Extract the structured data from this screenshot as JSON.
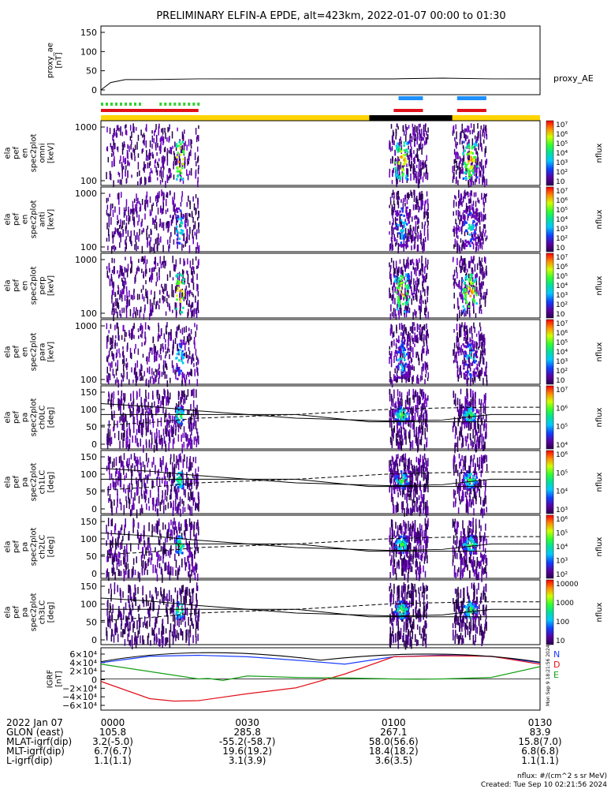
{
  "title": "PRELIMINARY ELFIN-A EPDE, alt=423km, 2022-01-07 00:00 to 01:30",
  "panels": [
    {
      "id": "proxy_ae",
      "ylabel": [
        "proxy_ae",
        "[nT]"
      ],
      "yticks": [
        "150",
        "100",
        "50",
        "0"
      ],
      "right_label": "proxy_AE"
    },
    {
      "id": "p_omni",
      "ylabel": [
        "ela",
        "pef",
        "en",
        "spec2plot",
        "omni",
        "[keV]"
      ],
      "yticks": [
        "1000",
        "100"
      ],
      "zlabel": "nflux",
      "zticks": [
        "10⁷",
        "10⁶",
        "10⁵",
        "10⁴",
        "10³",
        "10²",
        "10"
      ]
    },
    {
      "id": "p_anti",
      "ylabel": [
        "ela",
        "pef",
        "en",
        "spec2plot",
        "anti",
        "[keV]"
      ],
      "yticks": [
        "1000",
        "100"
      ],
      "zlabel": "nflux",
      "zticks": [
        "10⁷",
        "10⁶",
        "10⁵",
        "10⁴",
        "10³",
        "10²",
        "10"
      ]
    },
    {
      "id": "p_perp",
      "ylabel": [
        "ela",
        "pef",
        "en",
        "spec2plot",
        "perp",
        "[keV]"
      ],
      "yticks": [
        "1000",
        "100"
      ],
      "zlabel": "nflux",
      "zticks": [
        "10⁷",
        "10⁶",
        "10⁵",
        "10⁴",
        "10³",
        "10²",
        "10"
      ]
    },
    {
      "id": "p_para",
      "ylabel": [
        "ela",
        "pef",
        "en",
        "spec2plot",
        "para",
        "[keV]"
      ],
      "yticks": [
        "1000",
        "100"
      ],
      "zlabel": "nflux",
      "zticks": [
        "10⁷",
        "10⁶",
        "10⁵",
        "10⁴",
        "10³",
        "10²",
        "10"
      ]
    },
    {
      "id": "p_ch0",
      "ylabel": [
        "ela",
        "pef",
        "pa",
        "spec2plot",
        "ch0LC",
        "[deg]"
      ],
      "yticks": [
        "150",
        "100",
        "50",
        "0"
      ],
      "zlabel": "nflux",
      "zticks": [
        "10⁷",
        "10⁶",
        "10⁵",
        "10⁴"
      ]
    },
    {
      "id": "p_ch1",
      "ylabel": [
        "ela",
        "pef",
        "pa",
        "spec2plot",
        "ch1LC",
        "[deg]"
      ],
      "yticks": [
        "150",
        "100",
        "50",
        "0"
      ],
      "zlabel": "nflux",
      "zticks": [
        "10⁶",
        "10⁵",
        "10⁴",
        "10³"
      ]
    },
    {
      "id": "p_ch2",
      "ylabel": [
        "ela",
        "pef",
        "pa",
        "spec2plot",
        "ch2LC",
        "[deg]"
      ],
      "yticks": [
        "150",
        "100",
        "50",
        "0"
      ],
      "zlabel": "nflux",
      "zticks": [
        "10⁶",
        "10⁵",
        "10⁴",
        "10³",
        "10²"
      ]
    },
    {
      "id": "p_ch3",
      "ylabel": [
        "ela",
        "pef",
        "pa",
        "spec2plot",
        "ch3LC",
        "[deg]"
      ],
      "yticks": [
        "150",
        "100",
        "50",
        "0"
      ],
      "zlabel": "nflux",
      "zticks": [
        "10000",
        "1000",
        "100",
        "10"
      ]
    },
    {
      "id": "igrf",
      "ylabel": [
        "IGRF",
        "[nT]"
      ],
      "yticks": [
        "6×10⁴",
        "4×10⁴",
        "2×10⁴",
        "0",
        "−2×10⁴",
        "−4×10⁴",
        "−6×10⁴"
      ],
      "legend": [
        "N",
        "D",
        "E"
      ]
    }
  ],
  "x_labels": {
    "rows": [
      "2022 Jan 07",
      "GLON (east)",
      "MLAT-igrf(dip)",
      "MLT-igrf(dip)",
      "L-igrf(dip)"
    ],
    "columns": [
      [
        "0000",
        "105.8",
        "3.2(-5.0)",
        "6.7(6.7)",
        "1.1(1.1)"
      ],
      [
        "0030",
        "285.8",
        "-55.2(-58.7)",
        "19.6(19.2)",
        "3.1(3.9)"
      ],
      [
        "0100",
        "267.1",
        "58.0(56.6)",
        "18.4(18.2)",
        "3.6(3.5)"
      ],
      [
        "0130",
        "83.9",
        "15.8(7.0)",
        "6.8(6.8)",
        "1.1(1.1)"
      ]
    ]
  },
  "footer": {
    "units": "nflux: #/(cm^2 s sr MeV)",
    "created": "Created: Tue Sep 10 02:21:56 2024",
    "side_stamp": "Mon Sep 9 18:21:56 2024"
  },
  "colors": {
    "ae_line": "#000",
    "igrf_N": "#1a3cff",
    "igrf_D": "#e0101a",
    "igrf_E": "#14a014",
    "bar_yellow": "#ffd400",
    "bar_black": "#000",
    "bar_red": "#e0101a",
    "bar_blue": "#1e90ff",
    "bar_green": "#32d232"
  },
  "chart_data": {
    "type": "heatmap",
    "x_range_minutes": [
      0,
      90
    ],
    "proxy_ae": {
      "ylim": [
        0,
        160
      ],
      "x": [
        0,
        2,
        5,
        10,
        20,
        30,
        45,
        60,
        70,
        80,
        90
      ],
      "y": [
        0,
        20,
        28,
        28,
        30,
        30,
        30,
        30,
        32,
        30,
        30
      ]
    },
    "pa_lines_deg": {
      "solid_upper": {
        "x": [
          0,
          10,
          20,
          40,
          60,
          70,
          80,
          90
        ],
        "y": [
          120,
          112,
          100,
          80,
          72,
          75,
          90,
          90
        ]
      },
      "dashed": {
        "x": [
          0,
          10,
          20,
          40,
          60,
          70,
          80,
          90
        ],
        "y": [
          60,
          68,
          80,
          90,
          105,
          108,
          110,
          110
        ]
      },
      "solid_lower": {
        "x": [
          0,
          20,
          40,
          55,
          60,
          90
        ],
        "y": [
          90,
          90,
          90,
          70,
          70,
          70
        ]
      }
    },
    "igrf": {
      "ylim": [
        -60000,
        60000
      ],
      "N": {
        "x": [
          0,
          10,
          20,
          30,
          40,
          50,
          60,
          70,
          80,
          90
        ],
        "y": [
          33000,
          46000,
          48000,
          45000,
          38000,
          30000,
          45000,
          48000,
          46000,
          33000
        ]
      },
      "D": {
        "x": [
          0,
          10,
          15,
          20,
          30,
          40,
          50,
          60,
          70,
          80,
          90
        ],
        "y": [
          -5000,
          -40000,
          -45000,
          -44000,
          -30000,
          -18000,
          10000,
          45000,
          47000,
          46000,
          30000
        ]
      },
      "E": {
        "x": [
          0,
          20,
          22,
          25,
          30,
          40,
          50,
          60,
          65,
          70,
          80,
          90
        ],
        "y": [
          30000,
          0,
          1000,
          -3000,
          6000,
          3000,
          2000,
          0,
          -500,
          0,
          3000,
          25000
        ]
      }
    },
    "bars": {
      "yellow_top": [
        [
          0,
          20
        ],
        [
          55,
          72
        ]
      ],
      "black": [
        [
          55,
          72
        ]
      ],
      "yellow_end": [
        [
          72,
          90
        ]
      ],
      "red_row": [
        [
          0,
          20
        ],
        [
          60,
          66
        ],
        [
          73,
          79
        ]
      ],
      "blue_row": [
        [
          61,
          66
        ],
        [
          73,
          79
        ]
      ],
      "green_row": [
        [
          0,
          8
        ],
        [
          12,
          20
        ]
      ]
    }
  }
}
